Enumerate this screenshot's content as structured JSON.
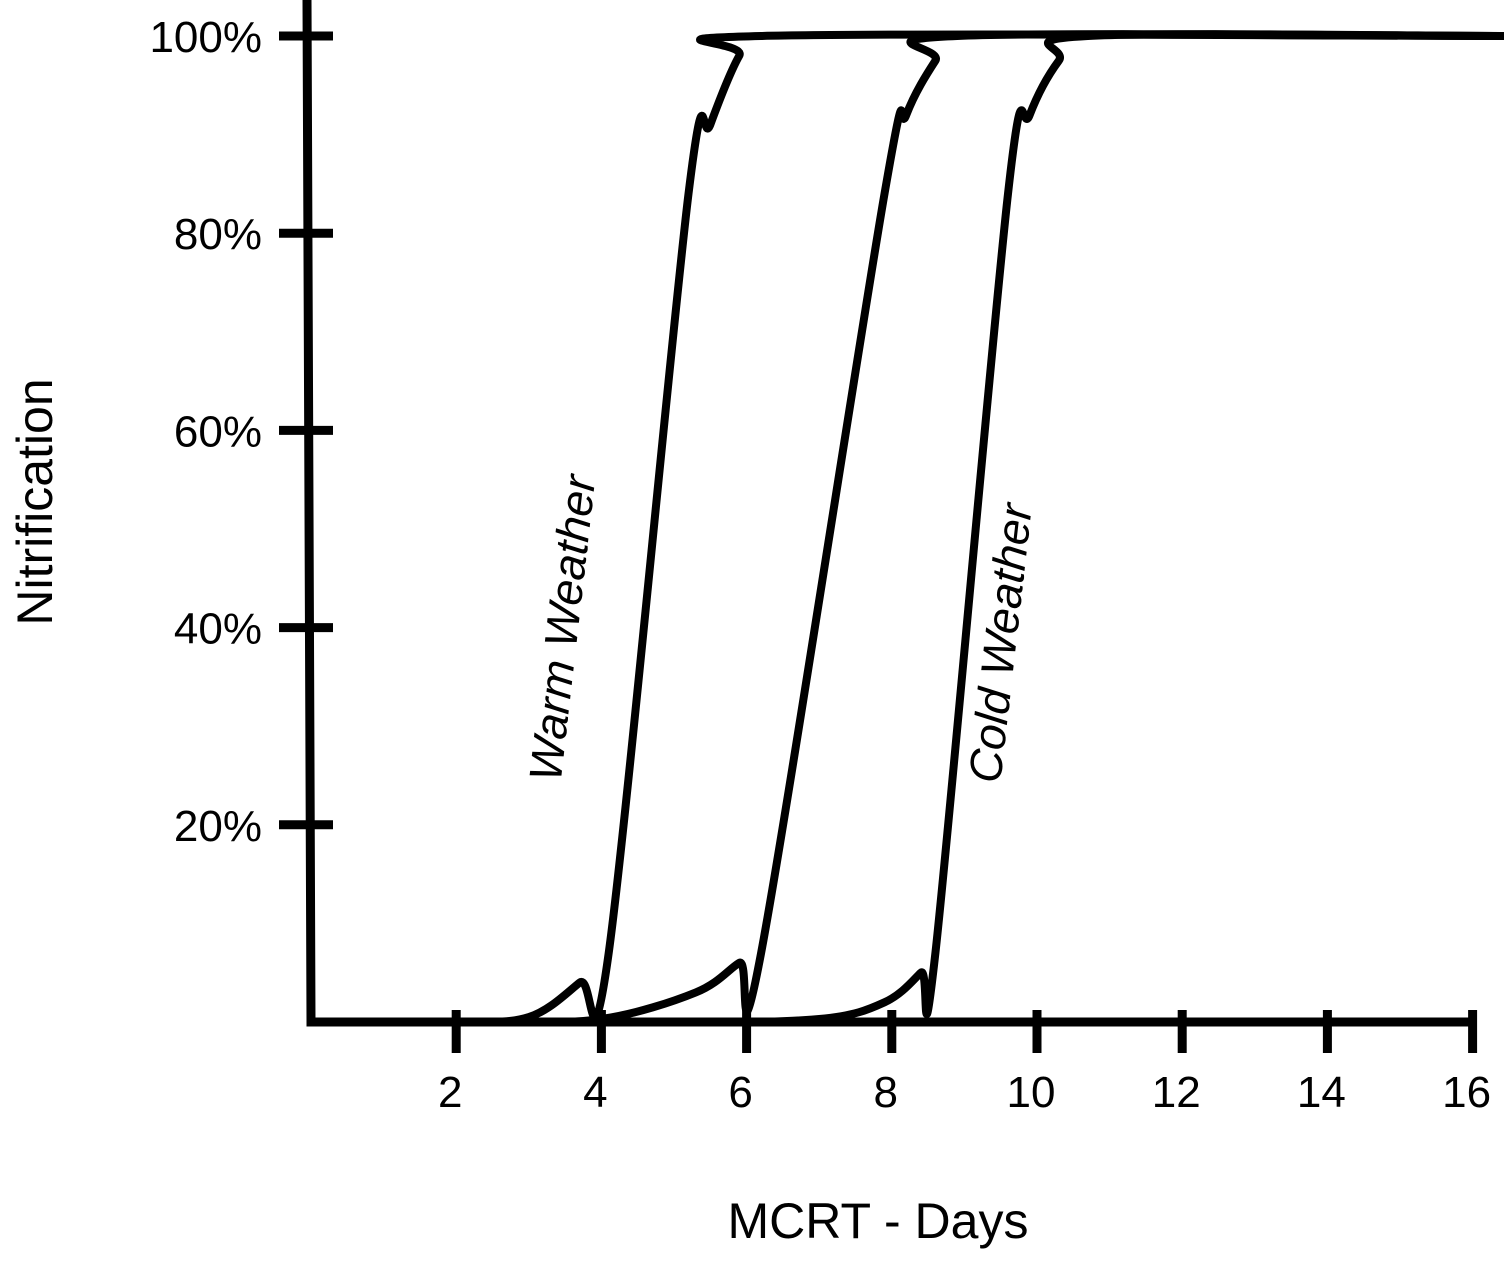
{
  "chart_data": {
    "type": "line",
    "title": "",
    "xlabel": "MCRT - Days",
    "ylabel": "Nitrification",
    "xlim": [
      0,
      16.5
    ],
    "ylim": [
      0,
      100
    ],
    "x_ticks": [
      2,
      4,
      6,
      8,
      10,
      12,
      14,
      16
    ],
    "x_tick_labels": [
      "2",
      "4",
      "6",
      "8",
      "10",
      "12",
      "14",
      "16"
    ],
    "y_ticks": [
      20,
      40,
      60,
      80,
      100
    ],
    "y_tick_labels": [
      "20%",
      "40%",
      "60%",
      "80%",
      "100%"
    ],
    "grid": false,
    "legend": "none",
    "line_color": "#000000",
    "series": [
      {
        "name": "Warm Weather",
        "points": [
          [
            0,
            0
          ],
          [
            2.0,
            0
          ],
          [
            3.0,
            0.5
          ],
          [
            3.7,
            4
          ],
          [
            4.1,
            7
          ],
          [
            5.2,
            84
          ],
          [
            5.5,
            91
          ],
          [
            5.9,
            98
          ],
          [
            6.2,
            100
          ],
          [
            16.5,
            100
          ]
        ]
      },
      {
        "points": [
          [
            0,
            0
          ],
          [
            2.5,
            0
          ],
          [
            4.0,
            0.3
          ],
          [
            5.3,
            3
          ],
          [
            5.9,
            6
          ],
          [
            6.2,
            7
          ],
          [
            7.9,
            84
          ],
          [
            8.2,
            92
          ],
          [
            8.6,
            97.5
          ],
          [
            8.9,
            100
          ],
          [
            16.5,
            100
          ]
        ]
      },
      {
        "name": "Cold Weather",
        "points": [
          [
            0,
            0
          ],
          [
            5.0,
            0
          ],
          [
            7.0,
            0.3
          ],
          [
            7.9,
            2
          ],
          [
            8.4,
            5
          ],
          [
            8.6,
            7
          ],
          [
            9.6,
            84
          ],
          [
            9.9,
            92
          ],
          [
            10.3,
            97.5
          ],
          [
            10.7,
            100
          ],
          [
            16.5,
            100
          ]
        ]
      }
    ],
    "annotations": [
      {
        "text": "Warm Weather"
      },
      {
        "text": "Cold Weather"
      }
    ]
  }
}
